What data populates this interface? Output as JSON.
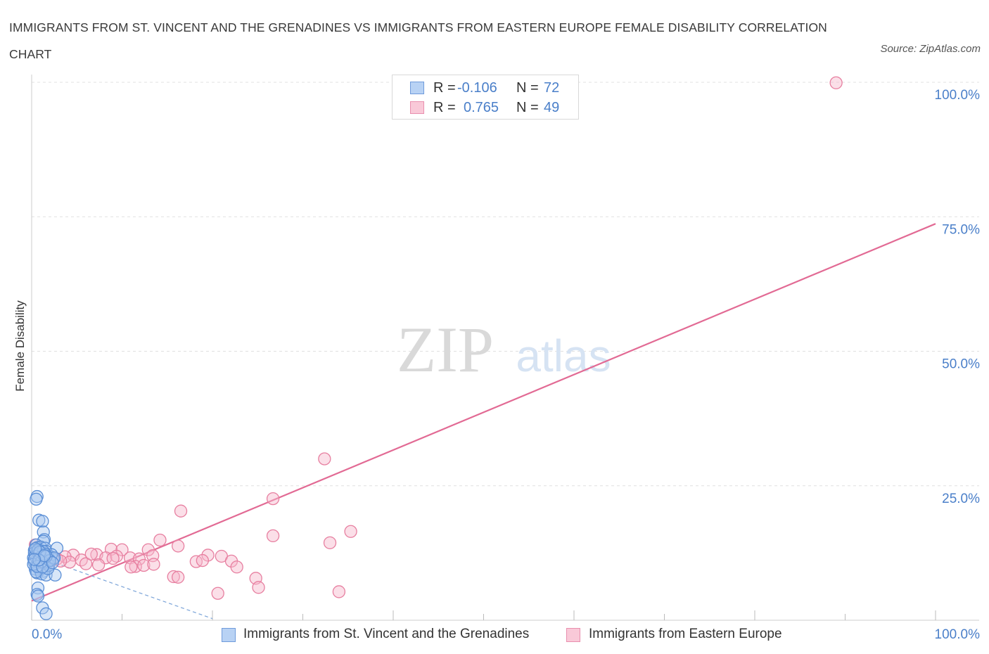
{
  "title": "IMMIGRANTS FROM ST. VINCENT AND THE GRENADINES VS IMMIGRANTS FROM EASTERN EUROPE FEMALE DISABILITY CORRELATION CHART",
  "source": "Source: ZipAtlas.com",
  "watermark": {
    "zip": "ZIP",
    "atlas": "atlas"
  },
  "legend": {
    "rows": [
      {
        "r_label": "R =",
        "r_value": "-0.106",
        "n_label": "N =",
        "n_value": "72"
      },
      {
        "r_label": "R =",
        "r_value": "0.765",
        "n_label": "N =",
        "n_value": "49"
      }
    ]
  },
  "bottom_legend": {
    "series_a": "Immigrants from St. Vincent and the Grenadines",
    "series_b": "Immigrants from Eastern Europe"
  },
  "colors": {
    "blue_fill": "#a9c8f0",
    "blue_stroke": "#5b8fd6",
    "pink_fill": "#f6b8cb",
    "pink_stroke": "#e77fa0",
    "pink_line": "#e26a94",
    "blue_line": "#7aa3d8",
    "tick_text": "#4a7fc9",
    "grid": "#e0e0e0"
  },
  "chart_data": {
    "type": "scatter",
    "title": "IMMIGRANTS FROM ST. VINCENT AND THE GRENADINES VS IMMIGRANTS FROM EASTERN EUROPE FEMALE DISABILITY CORRELATION CHART",
    "xlabel": "",
    "ylabel": "Female Disability",
    "xlim": [
      0,
      100
    ],
    "ylim": [
      0,
      100
    ],
    "x_ticks": [
      "0.0%",
      "100.0%"
    ],
    "y_ticks": [
      {
        "value": 25,
        "label": "25.0%"
      },
      {
        "value": 50,
        "label": "50.0%"
      },
      {
        "value": 75,
        "label": "75.0%"
      },
      {
        "value": 100,
        "label": "100.0%"
      }
    ],
    "series": [
      {
        "name": "Immigrants from St. Vincent and the Grenadines",
        "R": -0.106,
        "N": 72,
        "points": [
          [
            0.6,
            23.0
          ],
          [
            0.5,
            22.5
          ],
          [
            0.8,
            18.6
          ],
          [
            1.2,
            18.4
          ],
          [
            1.3,
            16.4
          ],
          [
            1.4,
            15.0
          ],
          [
            1.3,
            14.7
          ],
          [
            0.5,
            14.0
          ],
          [
            0.6,
            13.5
          ],
          [
            1.0,
            13.6
          ],
          [
            1.5,
            13.4
          ],
          [
            0.3,
            13.0
          ],
          [
            0.7,
            12.9
          ],
          [
            1.1,
            12.6
          ],
          [
            1.6,
            12.8
          ],
          [
            2.8,
            13.4
          ],
          [
            0.4,
            12.2
          ],
          [
            0.9,
            12.1
          ],
          [
            1.2,
            11.9
          ],
          [
            1.8,
            12.0
          ],
          [
            2.1,
            11.8
          ],
          [
            0.2,
            11.6
          ],
          [
            0.6,
            11.4
          ],
          [
            1.0,
            11.3
          ],
          [
            1.4,
            11.2
          ],
          [
            1.9,
            11.5
          ],
          [
            2.4,
            11.4
          ],
          [
            0.3,
            10.8
          ],
          [
            0.8,
            10.7
          ],
          [
            1.2,
            10.5
          ],
          [
            1.7,
            10.6
          ],
          [
            0.5,
            10.2
          ],
          [
            1.0,
            10.0
          ],
          [
            1.5,
            9.8
          ],
          [
            0.4,
            9.5
          ],
          [
            0.9,
            9.3
          ],
          [
            1.3,
            9.1
          ],
          [
            0.6,
            8.8
          ],
          [
            1.1,
            8.6
          ],
          [
            1.6,
            8.4
          ],
          [
            2.6,
            8.4
          ],
          [
            0.7,
            6.0
          ],
          [
            0.6,
            4.8
          ],
          [
            0.7,
            4.5
          ],
          [
            1.2,
            2.3
          ],
          [
            1.6,
            1.2
          ],
          [
            0.3,
            12.5
          ],
          [
            0.8,
            12.3
          ],
          [
            1.7,
            11.0
          ],
          [
            2.2,
            12.2
          ],
          [
            0.4,
            11.9
          ],
          [
            1.3,
            12.8
          ],
          [
            1.9,
            10.2
          ],
          [
            0.5,
            9.0
          ],
          [
            1.4,
            10.8
          ],
          [
            2.5,
            11.6
          ],
          [
            0.7,
            13.1
          ],
          [
            1.0,
            11.7
          ],
          [
            1.5,
            12.3
          ],
          [
            0.2,
            10.4
          ],
          [
            1.8,
            9.6
          ],
          [
            0.9,
            12.7
          ],
          [
            1.1,
            10.9
          ],
          [
            2.0,
            11.1
          ],
          [
            0.6,
            10.0
          ],
          [
            1.6,
            11.9
          ],
          [
            0.4,
            13.3
          ],
          [
            1.2,
            9.9
          ],
          [
            0.8,
            11.2
          ],
          [
            2.3,
            10.7
          ],
          [
            1.4,
            12.0
          ],
          [
            0.3,
            11.3
          ]
        ]
      },
      {
        "name": "Immigrants from Eastern Europe",
        "R": 0.765,
        "N": 49,
        "points": [
          [
            89.0,
            99.9
          ],
          [
            32.4,
            30.0
          ],
          [
            26.7,
            22.6
          ],
          [
            16.5,
            20.3
          ],
          [
            35.3,
            16.5
          ],
          [
            26.7,
            15.7
          ],
          [
            33.0,
            14.4
          ],
          [
            14.2,
            14.9
          ],
          [
            8.8,
            13.2
          ],
          [
            10.0,
            13.1
          ],
          [
            12.9,
            13.1
          ],
          [
            16.2,
            13.8
          ],
          [
            4.6,
            12.1
          ],
          [
            7.2,
            12.2
          ],
          [
            8.2,
            11.6
          ],
          [
            9.4,
            11.9
          ],
          [
            10.9,
            11.6
          ],
          [
            11.9,
            11.4
          ],
          [
            3.7,
            11.8
          ],
          [
            5.5,
            11.2
          ],
          [
            13.4,
            12.0
          ],
          [
            19.5,
            12.1
          ],
          [
            21.0,
            11.9
          ],
          [
            22.1,
            11.0
          ],
          [
            4.2,
            10.8
          ],
          [
            6.0,
            10.5
          ],
          [
            7.4,
            10.3
          ],
          [
            11.5,
            10.0
          ],
          [
            12.4,
            10.2
          ],
          [
            13.5,
            10.4
          ],
          [
            18.2,
            10.9
          ],
          [
            18.9,
            11.1
          ],
          [
            22.7,
            9.9
          ],
          [
            2.0,
            10.9
          ],
          [
            2.8,
            11.4
          ],
          [
            3.2,
            11.0
          ],
          [
            1.2,
            12.0
          ],
          [
            1.6,
            11.5
          ],
          [
            0.7,
            11.7
          ],
          [
            0.4,
            14.0
          ],
          [
            15.7,
            8.1
          ],
          [
            16.2,
            8.0
          ],
          [
            24.8,
            7.8
          ],
          [
            25.1,
            6.1
          ],
          [
            20.6,
            5.0
          ],
          [
            34.0,
            5.3
          ],
          [
            9.0,
            11.5
          ],
          [
            11.0,
            9.9
          ],
          [
            6.6,
            12.3
          ]
        ]
      }
    ],
    "trend_lines": [
      {
        "series": "Immigrants from Eastern Europe",
        "style": "solid",
        "from": [
          0,
          3.6
        ],
        "to": [
          100,
          73.7
        ]
      },
      {
        "series": "Immigrants from St. Vincent and the Grenadines",
        "style": "dashed",
        "from": [
          0,
          12.2
        ],
        "to": [
          20,
          0.3
        ]
      }
    ]
  }
}
